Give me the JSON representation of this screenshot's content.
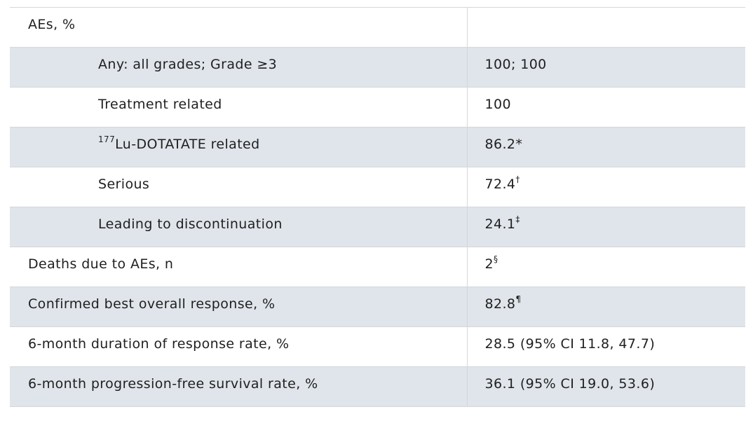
{
  "rows": [
    {
      "label": "AEs, %",
      "label_sup_pre": "",
      "value": "",
      "value_sup": "",
      "indent": false,
      "shaded": false
    },
    {
      "label": "Any: all grades; Grade ≥3",
      "label_sup_pre": "",
      "value": "100; 100",
      "value_sup": "",
      "indent": true,
      "shaded": true
    },
    {
      "label": "Treatment related",
      "label_sup_pre": "",
      "value": "100",
      "value_sup": "",
      "indent": true,
      "shaded": false
    },
    {
      "label": "Lu-DOTATATE related",
      "label_sup_pre": "177",
      "value": "86.2*",
      "value_sup": "",
      "indent": true,
      "shaded": true
    },
    {
      "label": "Serious",
      "label_sup_pre": "",
      "value": "72.4",
      "value_sup": "†",
      "indent": true,
      "shaded": false
    },
    {
      "label": "Leading to discontinuation",
      "label_sup_pre": "",
      "value": "24.1",
      "value_sup": "‡",
      "indent": true,
      "shaded": true
    },
    {
      "label": "Deaths due to AEs, n",
      "label_sup_pre": "",
      "value": "2",
      "value_sup": "§",
      "indent": false,
      "shaded": false
    },
    {
      "label": "Confirmed best overall response, %",
      "label_sup_pre": "",
      "value": "82.8",
      "value_sup": "¶",
      "indent": false,
      "shaded": true
    },
    {
      "label": "6-month duration of response rate, %",
      "label_sup_pre": "",
      "value": "28.5 (95% CI 11.8, 47.7)",
      "value_sup": "",
      "indent": false,
      "shaded": false
    },
    {
      "label": "6-month progression-free survival rate, %",
      "label_sup_pre": "",
      "value": "36.1 (95% CI 19.0, 53.6)",
      "value_sup": "",
      "indent": false,
      "shaded": true
    }
  ]
}
